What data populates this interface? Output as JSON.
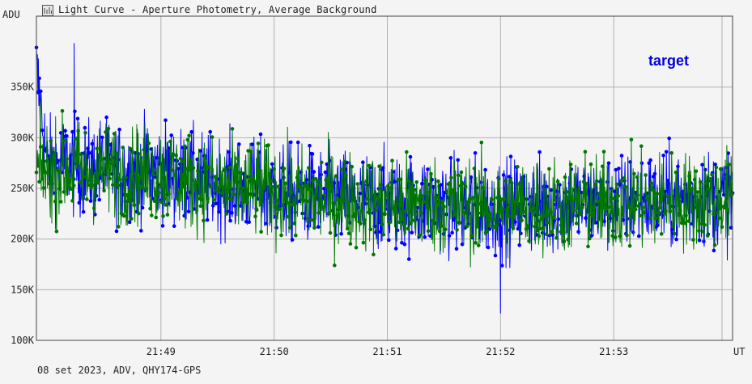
{
  "window": {
    "title": "Light Curve - Aperture Photometry, Average Background",
    "icon": "chart-icon"
  },
  "footer_info": "08 set 2023, ADV, QHY174-GPS",
  "chart_data": {
    "type": "line",
    "y_unit": "ADU",
    "x_unit": "UT",
    "ylim": [
      100000,
      420000
    ],
    "xlim": [
      "21:47:54",
      "21:54:03"
    ],
    "y_ticks": [
      {
        "value": 100000,
        "label": "100K"
      },
      {
        "value": 150000,
        "label": "150K"
      },
      {
        "value": 200000,
        "label": "200K"
      },
      {
        "value": 250000,
        "label": "250K"
      },
      {
        "value": 300000,
        "label": "300K"
      },
      {
        "value": 350000,
        "label": "350K"
      }
    ],
    "x_ticks": [
      {
        "time": "21:49:00",
        "label": "21:49"
      },
      {
        "time": "21:50:00",
        "label": "21:50"
      },
      {
        "time": "21:51:00",
        "label": "21:51"
      },
      {
        "time": "21:52:00",
        "label": "21:52"
      },
      {
        "time": "21:53:00",
        "label": "21:53"
      }
    ],
    "grid": true,
    "legend": [
      {
        "label": "target",
        "color": "#0000e0",
        "position": "top-right"
      }
    ],
    "series": [
      {
        "color": "#0000ff",
        "marker": "circle",
        "x": [
          "21:47:54",
          "21:48:00",
          "21:48:10",
          "21:48:20",
          "21:48:30",
          "21:48:40",
          "21:48:50",
          "21:49:00",
          "21:49:10",
          "21:49:20",
          "21:49:30",
          "21:49:40",
          "21:49:50",
          "21:50:00",
          "21:50:10",
          "21:50:20",
          "21:50:30",
          "21:50:40",
          "21:50:50",
          "21:51:00",
          "21:51:10",
          "21:51:20",
          "21:51:30",
          "21:51:40",
          "21:51:50",
          "21:52:00",
          "21:52:10",
          "21:52:20",
          "21:52:30",
          "21:52:40",
          "21:52:50",
          "21:53:00",
          "21:53:10",
          "21:53:20",
          "21:53:30",
          "21:53:40",
          "21:53:50",
          "21:54:03"
        ],
        "y": [
          365000,
          270000,
          275000,
          268000,
          272000,
          265000,
          270000,
          268000,
          262000,
          258000,
          255000,
          252000,
          250000,
          248000,
          245000,
          242000,
          240000,
          240000,
          238000,
          236000,
          235000,
          236000,
          234000,
          233000,
          232000,
          230000,
          232000,
          233000,
          234000,
          235000,
          236000,
          236000,
          237000,
          238000,
          238000,
          239000,
          240000,
          242000
        ]
      },
      {
        "color": "#007800",
        "marker": "circle",
        "x": [
          "21:47:54",
          "21:48:00",
          "21:48:10",
          "21:48:20",
          "21:48:30",
          "21:48:40",
          "21:48:50",
          "21:49:00",
          "21:49:10",
          "21:49:20",
          "21:49:30",
          "21:49:40",
          "21:49:50",
          "21:50:00",
          "21:50:10",
          "21:50:20",
          "21:50:30",
          "21:50:40",
          "21:50:50",
          "21:51:00",
          "21:51:10",
          "21:51:20",
          "21:51:30",
          "21:51:40",
          "21:51:50",
          "21:52:00",
          "21:52:10",
          "21:52:20",
          "21:52:30",
          "21:52:40",
          "21:52:50",
          "21:53:00",
          "21:53:10",
          "21:53:20",
          "21:53:30",
          "21:53:40",
          "21:53:50",
          "21:54:03"
        ],
        "y": [
          268000,
          266000,
          270000,
          265000,
          268000,
          262000,
          265000,
          264000,
          258000,
          256000,
          252000,
          250000,
          248000,
          246000,
          243000,
          240000,
          238000,
          238000,
          236000,
          234000,
          234000,
          235000,
          233000,
          232000,
          231000,
          231000,
          232000,
          233000,
          233000,
          234000,
          235000,
          235000,
          236000,
          237000,
          237000,
          238000,
          239000,
          240000
        ]
      }
    ],
    "annotations": [
      {
        "time": "21:52:00",
        "value": 127000,
        "note": "deepest blue dip"
      },
      {
        "time": "21:48:14",
        "value": 393000,
        "note": "highest blue peak"
      }
    ]
  }
}
